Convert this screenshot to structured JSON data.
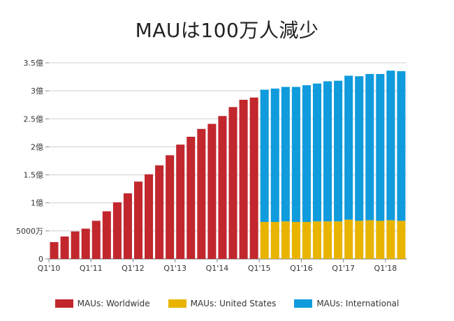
{
  "chart_data": {
    "type": "bar",
    "stacked": true,
    "title": "MAUは100万人減少",
    "xlabel": "",
    "ylabel": "",
    "ylim": [
      0,
      350000000
    ],
    "grid": true,
    "legend_position": "bottom",
    "y_ticks": [
      {
        "value": 0,
        "label": "0"
      },
      {
        "value": 50000000,
        "label": "5000万"
      },
      {
        "value": 100000000,
        "label": "1億"
      },
      {
        "value": 150000000,
        "label": "1.5億"
      },
      {
        "value": 200000000,
        "label": "2億"
      },
      {
        "value": 250000000,
        "label": "2.5億"
      },
      {
        "value": 300000000,
        "label": "3億"
      },
      {
        "value": 350000000,
        "label": "3.5億"
      }
    ],
    "categories": [
      "Q1'10",
      "Q2'10",
      "Q3'10",
      "Q4'10",
      "Q1'11",
      "Q2'11",
      "Q3'11",
      "Q4'11",
      "Q1'12",
      "Q2'12",
      "Q3'12",
      "Q4'12",
      "Q1'13",
      "Q2'13",
      "Q3'13",
      "Q4'13",
      "Q1'14",
      "Q2'14",
      "Q3'14",
      "Q4'14",
      "Q1'15",
      "Q2'15",
      "Q3'15",
      "Q4'15",
      "Q1'16",
      "Q2'16",
      "Q3'16",
      "Q4'16",
      "Q1'17",
      "Q2'17",
      "Q3'17",
      "Q4'17",
      "Q1'18",
      "Q2'18"
    ],
    "x_tick_labels": [
      "Q1'10",
      "Q1'11",
      "Q1'12",
      "Q1'13",
      "Q1'14",
      "Q1'15",
      "Q1'16",
      "Q1'17",
      "Q1'18"
    ],
    "series": [
      {
        "name": "MAUs: Worldwide",
        "color": "#c1272d",
        "values": [
          30000000,
          40000000,
          49000000,
          54000000,
          68000000,
          85000000,
          101000000,
          117000000,
          138000000,
          151000000,
          167000000,
          185000000,
          204000000,
          218000000,
          232000000,
          241000000,
          255000000,
          271000000,
          284000000,
          288000000,
          null,
          null,
          null,
          null,
          null,
          null,
          null,
          null,
          null,
          null,
          null,
          null,
          null,
          null
        ]
      },
      {
        "name": "MAUs: United States",
        "color": "#e8b400",
        "values": [
          null,
          null,
          null,
          null,
          null,
          null,
          null,
          null,
          null,
          null,
          null,
          null,
          null,
          null,
          null,
          null,
          null,
          null,
          null,
          null,
          66000000,
          66000000,
          67000000,
          66000000,
          66000000,
          67000000,
          67000000,
          67000000,
          70000000,
          68000000,
          69000000,
          68000000,
          69000000,
          68000000
        ]
      },
      {
        "name": "MAUs: International",
        "color": "#0f9bdc",
        "values": [
          null,
          null,
          null,
          null,
          null,
          null,
          null,
          null,
          null,
          null,
          null,
          null,
          null,
          null,
          null,
          null,
          null,
          null,
          null,
          null,
          236000000,
          238000000,
          240000000,
          241000000,
          244000000,
          246000000,
          250000000,
          251000000,
          257000000,
          258000000,
          261000000,
          262000000,
          267000000,
          267000000
        ]
      }
    ]
  },
  "legend": [
    {
      "label": "MAUs: Worldwide",
      "color": "#c1272d"
    },
    {
      "label": "MAUs: United States",
      "color": "#e8b400"
    },
    {
      "label": "MAUs: International",
      "color": "#0f9bdc"
    }
  ]
}
